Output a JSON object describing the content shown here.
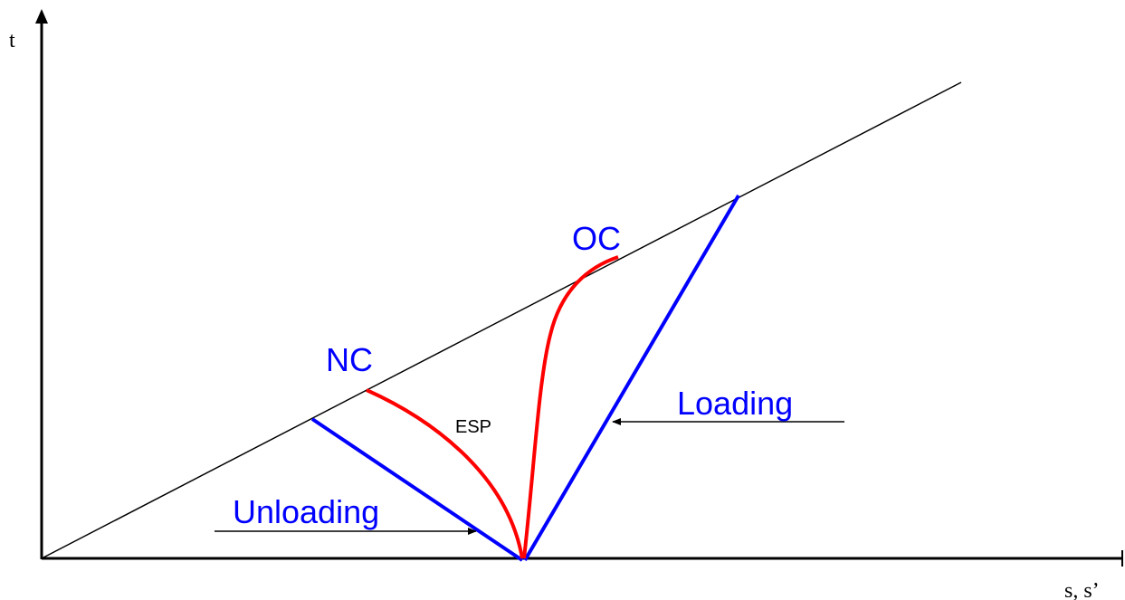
{
  "axes": {
    "y_label": "t",
    "x_label": "s, s’"
  },
  "labels": {
    "nc": "NC",
    "oc": "OC",
    "esp": "ESP",
    "loading": "Loading",
    "unloading": "Unloading"
  },
  "colors": {
    "axis": "#000000",
    "failure_line": "#000000",
    "stress_path": "#0000ff",
    "effective_path": "#ff0000",
    "label_blue": "#0000ff",
    "label_black": "#000000"
  }
}
